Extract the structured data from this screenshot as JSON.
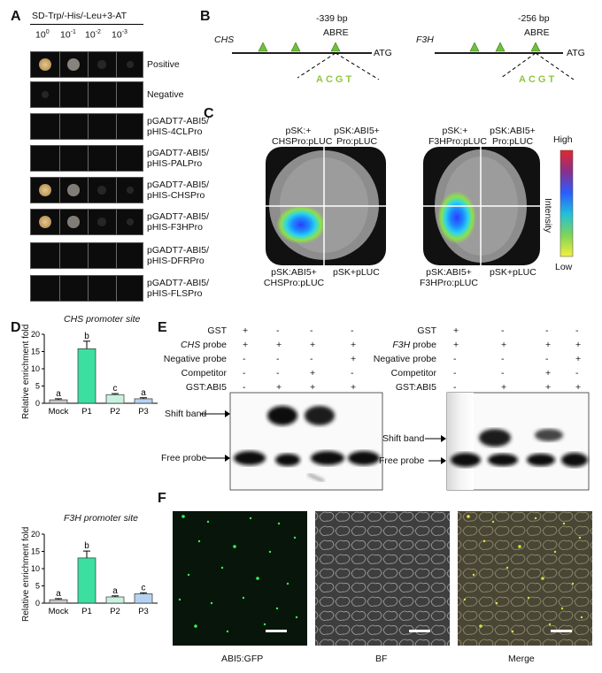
{
  "panels": {
    "A": "A",
    "B": "B",
    "C": "C",
    "D": "D",
    "E": "E",
    "F": "F"
  },
  "a": {
    "medium": "SD-Trp/-His/-Leu+3-AT",
    "dilutions": [
      {
        "base": "10",
        "exp": "0"
      },
      {
        "base": "10",
        "exp": "-1"
      },
      {
        "base": "10",
        "exp": "-2"
      },
      {
        "base": "10",
        "exp": "-3"
      }
    ],
    "rows": [
      {
        "l1": "Positive",
        "l2": "",
        "spots": [
          1,
          0.8,
          0.25,
          0.1
        ]
      },
      {
        "l1": "Negative",
        "l2": "",
        "spots": [
          0.2,
          0,
          0,
          0
        ]
      },
      {
        "l1": "pGADT7-ABI5/",
        "l2": "pHIS-4CLPro",
        "spots": [
          0,
          0,
          0,
          0
        ]
      },
      {
        "l1": "pGADT7-ABI5/",
        "l2": "pHIS-PALPro",
        "spots": [
          0,
          0,
          0,
          0
        ]
      },
      {
        "l1": "pGADT7-ABI5/",
        "l2": "pHIS-CHSPro",
        "spots": [
          1,
          0.75,
          0.3,
          0.1
        ]
      },
      {
        "l1": "pGADT7-ABI5/",
        "l2": "pHIS-F3HPro",
        "spots": [
          1,
          0.75,
          0.3,
          0.1
        ]
      },
      {
        "l1": "pGADT7-ABI5/",
        "l2": "pHIS-DFRPro",
        "spots": [
          0,
          0,
          0,
          0
        ]
      },
      {
        "l1": "pGADT7-ABI5/",
        "l2": "pHIS-FLSPro",
        "spots": [
          0,
          0,
          0,
          0
        ]
      }
    ]
  },
  "b": {
    "chs": {
      "gene": "CHS",
      "pos": "-339 bp",
      "element": "ABRE",
      "atg": "ATG",
      "seq": "ACGT"
    },
    "f3h": {
      "gene": "F3H",
      "pos": "-256 bp",
      "element": "ABRE",
      "atg": "ATG",
      "seq": "ACGT"
    },
    "seq_color": "#8cc83c"
  },
  "c": {
    "left": {
      "tl1": "pSK:+",
      "tl2": "CHSPro:pLUC",
      "tr1": "pSK:ABI5+",
      "tr2": "Pro:pLUC",
      "bl1": "pSK:ABI5+",
      "bl2": "CHSPro:pLUC",
      "br": "pSK+pLUC"
    },
    "right": {
      "tl1": "pSK:+",
      "tl2": "F3HPro:pLUC",
      "tr1": "pSK:ABI5+",
      "tr2": "Pro:pLUC",
      "bl1": "pSK:ABI5+",
      "bl2": "F3HPro:pLUC",
      "br": "pSK+pLUC"
    },
    "scale": {
      "high": "High",
      "low": "Low",
      "label": "Intensity"
    }
  },
  "chart_data": [
    {
      "type": "bar",
      "title": "CHS promoter site",
      "categories": [
        "Mock",
        "P1",
        "P2",
        "P3"
      ],
      "values": [
        1,
        15.8,
        2.5,
        1.3
      ],
      "errors": [
        0.3,
        2.2,
        0.3,
        0.3
      ],
      "letters": [
        "a",
        "b",
        "c",
        "a"
      ],
      "colors": [
        "#c9c9c9",
        "#3ddfa0",
        "#c8f2de",
        "#b5d2f2"
      ],
      "ylabel": "Relative enrichment fold",
      "ylim": [
        0,
        20
      ],
      "yticks": [
        0,
        5,
        10,
        15,
        20
      ]
    },
    {
      "type": "bar",
      "title": "F3H promoter site",
      "categories": [
        "Mock",
        "P1",
        "P2",
        "P3"
      ],
      "values": [
        1,
        13.1,
        1.8,
        2.7
      ],
      "errors": [
        0.3,
        2.0,
        0.3,
        0.3
      ],
      "letters": [
        "a",
        "b",
        "a",
        "c"
      ],
      "colors": [
        "#c9c9c9",
        "#3ddfa0",
        "#c8f2de",
        "#b5d2f2"
      ],
      "ylabel": "Relative enrichment fold",
      "ylim": [
        0,
        20
      ],
      "yticks": [
        0,
        5,
        10,
        15,
        20
      ]
    }
  ],
  "e": {
    "left": {
      "rows": [
        {
          "label": "GST",
          "italic": "",
          "vals": [
            "+",
            "-",
            "-",
            "-"
          ]
        },
        {
          "label": " probe",
          "italic": "CHS",
          "vals": [
            "+",
            "+",
            "+",
            "+"
          ]
        },
        {
          "label": "Negative probe",
          "italic": "",
          "vals": [
            "-",
            "-",
            "-",
            "+"
          ]
        },
        {
          "label": "Competitor",
          "italic": "",
          "vals": [
            "-",
            "-",
            "+",
            "-"
          ]
        },
        {
          "label": "GST:ABI5",
          "italic": "",
          "vals": [
            "-",
            "+",
            "+",
            "+"
          ]
        }
      ],
      "shift": "Shift band",
      "free": "Free probe"
    },
    "right": {
      "rows": [
        {
          "label": "GST",
          "italic": "",
          "vals": [
            "+",
            "-",
            "-",
            "-"
          ]
        },
        {
          "label": " probe",
          "italic": "F3H",
          "vals": [
            "+",
            "+",
            "+",
            "+"
          ]
        },
        {
          "label": "Negative probe",
          "italic": "",
          "vals": [
            "-",
            "-",
            "-",
            "+"
          ]
        },
        {
          "label": "Competitor",
          "italic": "",
          "vals": [
            "-",
            "-",
            "+",
            "-"
          ]
        },
        {
          "label": "GST:ABI5",
          "italic": "",
          "vals": [
            "-",
            "+",
            "+",
            "+"
          ]
        }
      ],
      "shift": "Shift band",
      "free": "Free probe"
    }
  },
  "f": {
    "captions": [
      "ABI5:GFP",
      "BF",
      "Merge"
    ]
  }
}
